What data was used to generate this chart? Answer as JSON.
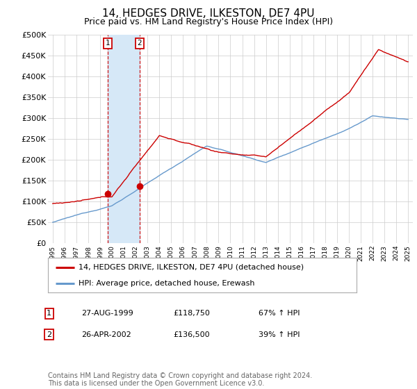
{
  "title": "14, HEDGES DRIVE, ILKESTON, DE7 4PU",
  "subtitle": "Price paid vs. HM Land Registry's House Price Index (HPI)",
  "ylim": [
    0,
    500000
  ],
  "yticks": [
    0,
    50000,
    100000,
    150000,
    200000,
    250000,
    300000,
    350000,
    400000,
    450000,
    500000
  ],
  "ytick_labels": [
    "£0",
    "£50K",
    "£100K",
    "£150K",
    "£200K",
    "£250K",
    "£300K",
    "£350K",
    "£400K",
    "£450K",
    "£500K"
  ],
  "background_color": "#ffffff",
  "plot_bg_color": "#ffffff",
  "grid_color": "#cccccc",
  "sale1_date": 1999.65,
  "sale1_price": 118750,
  "sale2_date": 2002.32,
  "sale2_price": 136500,
  "vspan_color": "#d6e8f7",
  "vline_color": "#cc0000",
  "red_line_color": "#cc0000",
  "blue_line_color": "#6699cc",
  "legend_red_label": "14, HEDGES DRIVE, ILKESTON, DE7 4PU (detached house)",
  "legend_blue_label": "HPI: Average price, detached house, Erewash",
  "table_row1": [
    "1",
    "27-AUG-1999",
    "£118,750",
    "67% ↑ HPI"
  ],
  "table_row2": [
    "2",
    "26-APR-2002",
    "£136,500",
    "39% ↑ HPI"
  ],
  "footnote": "Contains HM Land Registry data © Crown copyright and database right 2024.\nThis data is licensed under the Open Government Licence v3.0.",
  "title_fontsize": 11,
  "subtitle_fontsize": 9,
  "tick_fontsize": 8,
  "legend_fontsize": 8,
  "table_fontsize": 8,
  "footnote_fontsize": 7,
  "xmin": 1994.6,
  "xmax": 2025.4
}
